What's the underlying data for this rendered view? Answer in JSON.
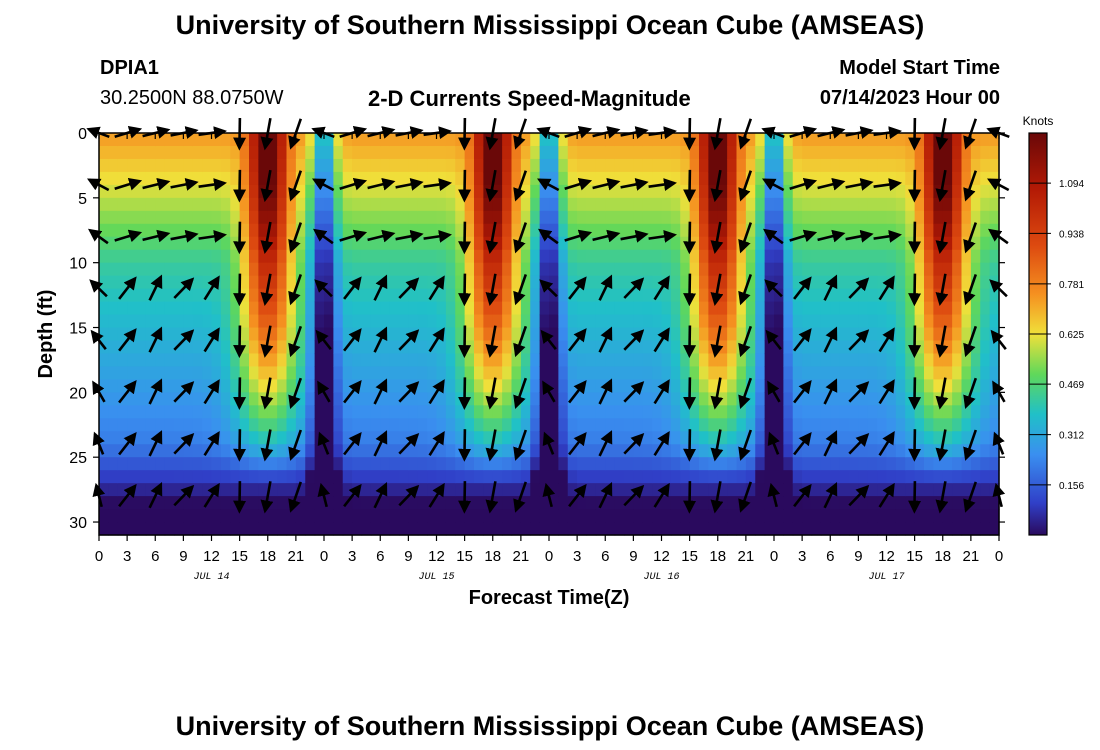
{
  "header": {
    "title": "University of Southern Mississippi Ocean Cube (AMSEAS)",
    "station": "DPIA1",
    "coords": "30.2500N  88.0750W",
    "plot_title": "2-D Currents Speed-Magnitude",
    "model_start_label": "Model Start Time",
    "model_start_value": "07/14/2023 Hour 00"
  },
  "footer": {
    "title": "University of Southern Mississippi Ocean Cube (AMSEAS)"
  },
  "chart_data": {
    "type": "heatmap",
    "title": "2-D Currents Speed-Magnitude",
    "xlabel": "Forecast Time(Z)",
    "ylabel": "Depth (ft)",
    "x_range": [
      0,
      96
    ],
    "y_range": [
      0,
      31
    ],
    "x_ticks": [
      "0",
      "3",
      "6",
      "9",
      "12",
      "15",
      "18",
      "21",
      "0",
      "3",
      "6",
      "9",
      "12",
      "15",
      "18",
      "21",
      "0",
      "3",
      "6",
      "9",
      "12",
      "15",
      "18",
      "21",
      "0",
      "3",
      "6",
      "9",
      "12",
      "15",
      "18",
      "21",
      "0"
    ],
    "y_ticks": [
      0,
      5,
      10,
      15,
      20,
      25,
      30
    ],
    "day_labels": [
      {
        "hour": 12,
        "label": "JUL 14"
      },
      {
        "hour": 36,
        "label": "JUL 15"
      },
      {
        "hour": 60,
        "label": "JUL 16"
      },
      {
        "hour": 84,
        "label": "JUL 17"
      }
    ],
    "colorbar": {
      "label": "Knots",
      "range": [
        0,
        1.25
      ],
      "ticks": [
        "0.156",
        "0.312",
        "0.469",
        "0.625",
        "0.781",
        "0.938",
        "1.094"
      ]
    },
    "strong_flow_peaks_hour": [
      18,
      42,
      66,
      90
    ],
    "slack_water_hours": [
      24,
      48,
      72
    ],
    "vector_depths_ft": [
      0,
      4,
      8,
      12,
      16,
      20,
      24,
      28
    ]
  }
}
